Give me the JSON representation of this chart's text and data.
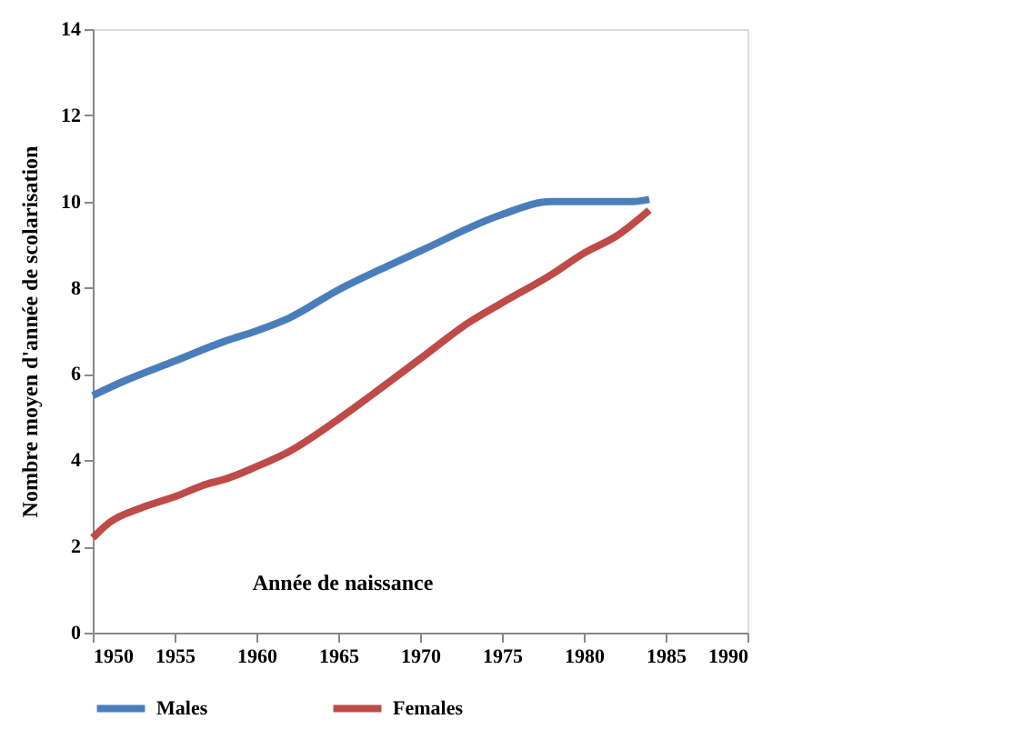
{
  "chart_data": {
    "type": "line",
    "xlabel": "Année de naissance",
    "ylabel": "Nombre moyen d'année de scolarisation",
    "xlim": [
      1950,
      1990
    ],
    "xticks": [
      1950,
      1955,
      1960,
      1965,
      1970,
      1975,
      1980,
      1985,
      1990
    ],
    "ylim": [
      0,
      14
    ],
    "yticks": [
      0,
      2,
      4,
      6,
      8,
      10,
      12,
      14
    ],
    "grid": false,
    "legend": "bottom",
    "marker": "none",
    "line_style": "solid",
    "series": [
      {
        "name": "Males",
        "color": "#4a7ebb",
        "x": [
          1950,
          1952,
          1955,
          1958,
          1960,
          1962,
          1965,
          1968,
          1970,
          1975,
          1978,
          1980,
          1983,
          1984
        ],
        "values": [
          5.5,
          5.85,
          6.3,
          6.75,
          7.0,
          7.3,
          7.95,
          8.5,
          8.85,
          9.7,
          10.0,
          10.0,
          10.0,
          10.05
        ]
      },
      {
        "name": "Females",
        "color": "#be4b48",
        "x": [
          1950,
          1951,
          1953,
          1955,
          1957,
          1958,
          1960,
          1962,
          1965,
          1967,
          1970,
          1973,
          1975,
          1978,
          1980,
          1982,
          1984
        ],
        "values": [
          2.2,
          2.55,
          2.9,
          3.15,
          3.45,
          3.55,
          3.85,
          4.2,
          4.95,
          5.5,
          6.35,
          7.2,
          7.65,
          8.3,
          8.8,
          9.2,
          9.8
        ]
      }
    ]
  }
}
